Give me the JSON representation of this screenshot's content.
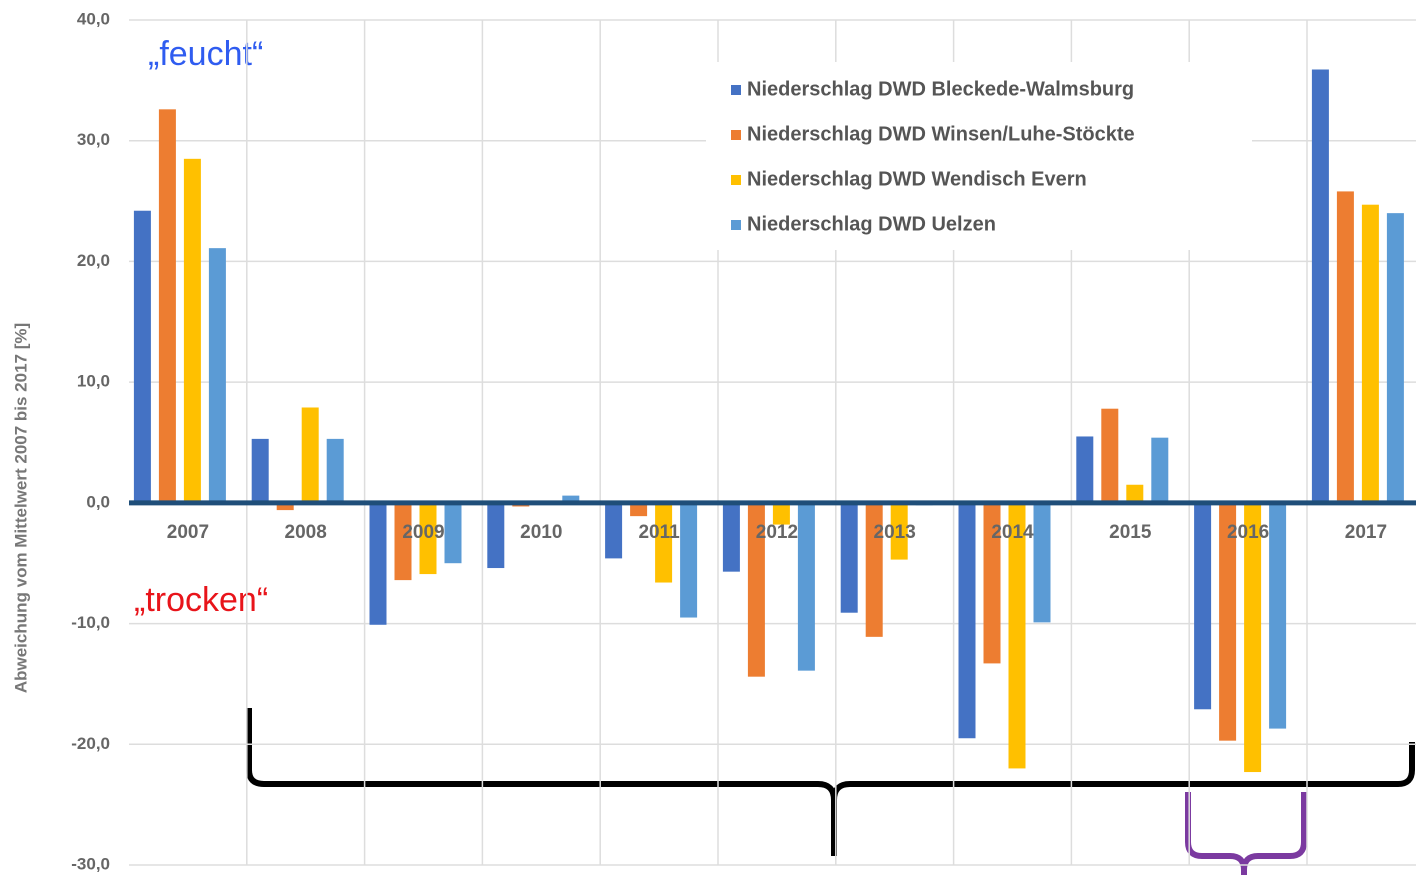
{
  "chart_data": {
    "type": "bar",
    "y_label": "Abweichung vom Mittelwert 2007 bis 2017 [%]",
    "annotations": [
      {
        "text": "„feucht“",
        "color": "#2f5cf0"
      },
      {
        "text": "„trocken“",
        "color": "#e8141a"
      }
    ],
    "categories": [
      "2007",
      "2008",
      "2009",
      "2010",
      "2011",
      "2012",
      "2013",
      "2014",
      "2015",
      "2016",
      "2017"
    ],
    "series": [
      {
        "name": "Niederschlag DWD Bleckede-Walmsburg",
        "color": "#4472c4",
        "values": [
          24.2,
          5.3,
          -10.1,
          -5.4,
          -4.6,
          -5.7,
          -9.1,
          -19.5,
          5.5,
          -17.1,
          35.9
        ]
      },
      {
        "name": "Niederschlag DWD Winsen/Luhe-Stöckte",
        "color": "#ed7d31",
        "values": [
          32.6,
          -0.6,
          -6.4,
          -0.3,
          -1.1,
          -14.4,
          -11.1,
          -13.3,
          7.8,
          -19.7,
          25.8
        ]
      },
      {
        "name": "Niederschlag DWD Wendisch Evern",
        "color": "#ffc000",
        "values": [
          28.5,
          7.9,
          -5.9,
          0,
          -6.6,
          -1.8,
          -4.7,
          -22.0,
          1.5,
          -22.3,
          24.7
        ]
      },
      {
        "name": "Niederschlag DWD Uelzen",
        "color": "#5b9bd5",
        "values": [
          21.1,
          5.3,
          -5.0,
          0.6,
          -9.5,
          -13.9,
          -0.2,
          -9.9,
          5.4,
          -18.7,
          24.0
        ]
      }
    ],
    "ylim": [
      -30,
      40
    ],
    "yticks": [
      {
        "value": -30,
        "label": "-30,0"
      },
      {
        "value": -20,
        "label": "-20,0"
      },
      {
        "value": -10,
        "label": "-10,0"
      },
      {
        "value": 0,
        "label": "0,0"
      },
      {
        "value": 10,
        "label": "10,0"
      },
      {
        "value": 20,
        "label": "20,0"
      },
      {
        "value": 30,
        "label": "30,0"
      },
      {
        "value": 40,
        "label": "40,0"
      }
    ],
    "grid": true
  }
}
